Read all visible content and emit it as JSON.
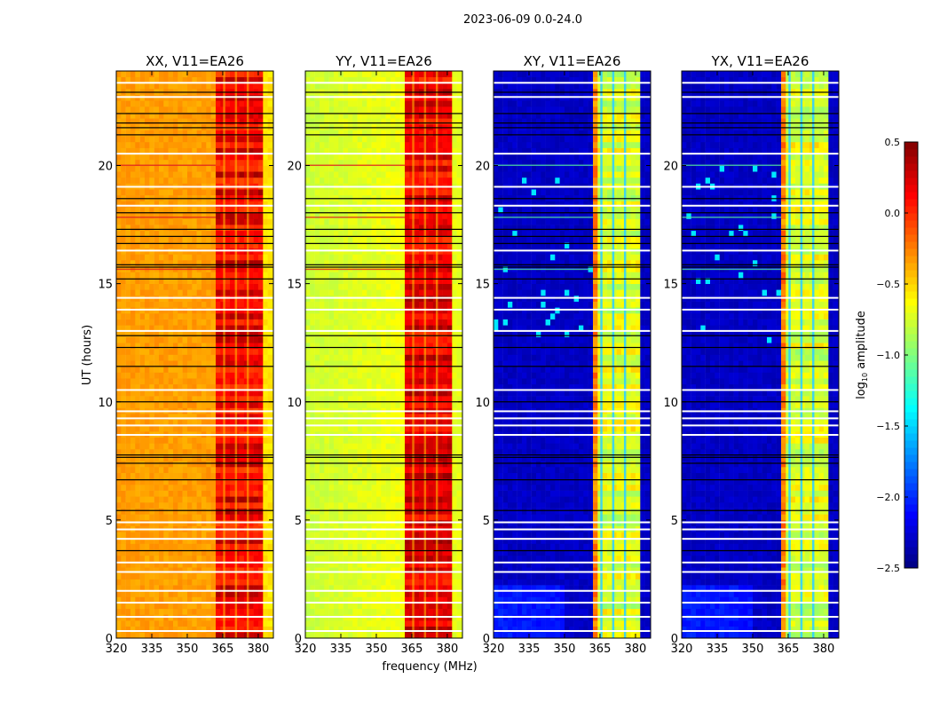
{
  "chart_data": {
    "type": "heatmap",
    "title": "2023-06-09 0.0-24.0",
    "xlabel": "frequency (MHz)",
    "ylabel": "UT (hours)",
    "xlim": [
      320,
      386.4
    ],
    "ylim": [
      0,
      24
    ],
    "xticks": [
      "320",
      "335",
      "350",
      "365",
      "380"
    ],
    "xtick_values": [
      320,
      335,
      350,
      365,
      380
    ],
    "yticks": [
      "0",
      "5",
      "10",
      "15",
      "20"
    ],
    "ytick_values": [
      0,
      5,
      10,
      15,
      20
    ],
    "colorbar": {
      "label": "log10 amplitude",
      "label_main": "log",
      "label_sub": "10",
      "label_rest": " amplitude",
      "range": [
        -2.5,
        0.5
      ],
      "ticks": [
        "0.5",
        "0.0",
        "−0.5",
        "−1.0",
        "−1.5",
        "−2.0",
        "−2.5"
      ],
      "tick_values": [
        0.5,
        0.0,
        -0.5,
        -1.0,
        -1.5,
        -2.0,
        -2.5
      ],
      "colormap": "jet"
    },
    "band_mhz": [
      362,
      382
    ],
    "band_gaps_mhz": [
      365.5,
      370.5,
      375.5
    ],
    "panels": [
      {
        "title": "XX, V11=EA26",
        "background_level": -0.38,
        "band_level": 0.15,
        "edge_level": -0.55
      },
      {
        "title": "YY, V11=EA26",
        "background_level": -0.78,
        "band_level": 0.18,
        "edge_level": -0.7
      },
      {
        "title": "XY, V11=EA26",
        "background_level": -2.3,
        "band_level": -0.72,
        "edge_level": -2.3
      },
      {
        "title": "YX, V11=EA26",
        "background_level": -2.3,
        "band_level": -0.72,
        "edge_level": -2.3
      }
    ],
    "flagged_rows_black_hours": [
      23.1,
      22.2,
      21.8,
      21.6,
      21.3,
      18.6,
      18.0,
      17.3,
      17.0,
      16.7,
      15.8,
      15.7,
      15.2,
      12.8,
      12.3,
      11.5,
      10.0,
      7.75,
      7.65,
      7.4,
      6.7,
      5.4,
      3.7
    ],
    "flagged_rows_white_hours": [
      23.5,
      22.9,
      20.5,
      19.1,
      18.3,
      16.4,
      14.4,
      13.9,
      13.0,
      10.5,
      9.6,
      9.3,
      9.0,
      8.6,
      4.9,
      4.6,
      4.2,
      3.2,
      2.8,
      2.0,
      1.5,
      0.9,
      0.3
    ],
    "rfi_row_hours": [
      20.0,
      17.8,
      15.6
    ]
  }
}
